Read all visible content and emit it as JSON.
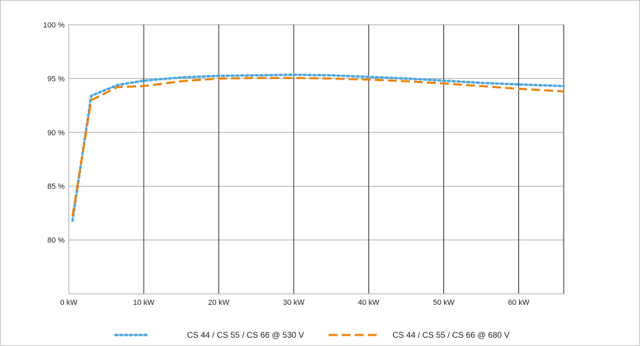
{
  "chart_data": {
    "type": "line",
    "title": "",
    "xlabel": "",
    "ylabel": "",
    "xlim": [
      0,
      66
    ],
    "ylim": [
      75,
      100
    ],
    "x_ticks": [
      0,
      10,
      20,
      30,
      40,
      50,
      60
    ],
    "x_tick_labels": [
      "0 kW",
      "10 kW",
      "20 kW",
      "30 kW",
      "40 kW",
      "50 kW",
      "60 kW"
    ],
    "y_ticks": [
      80,
      85,
      90,
      95,
      100
    ],
    "y_tick_labels": [
      "80 %",
      "85 %",
      "90 %",
      "95 %",
      "100 %"
    ],
    "grid": "horizontal and vertical",
    "legend_position": "bottom",
    "series": [
      {
        "name": "CS 44 / CS 55 / CS 66 @ 530 V",
        "color": "#4ea6dc",
        "style": "dotted",
        "x": [
          0.5,
          3,
          6.5,
          10,
          15,
          20,
          25,
          30,
          35,
          40,
          45,
          50,
          55,
          60,
          66
        ],
        "y": [
          81.8,
          93.4,
          94.4,
          94.8,
          95.1,
          95.25,
          95.3,
          95.35,
          95.3,
          95.15,
          95.0,
          94.8,
          94.6,
          94.45,
          94.3
        ]
      },
      {
        "name": "CS 44 / CS 55 / CS 66 @ 680 V",
        "color": "#e8830d",
        "style": "dashed",
        "x": [
          0.5,
          3,
          6.5,
          10,
          15,
          20,
          25,
          30,
          35,
          40,
          45,
          50,
          55,
          60,
          66
        ],
        "y": [
          82.2,
          93.0,
          94.2,
          94.3,
          94.75,
          95.0,
          95.05,
          95.05,
          95.0,
          94.9,
          94.75,
          94.55,
          94.3,
          94.05,
          93.8
        ]
      }
    ]
  }
}
